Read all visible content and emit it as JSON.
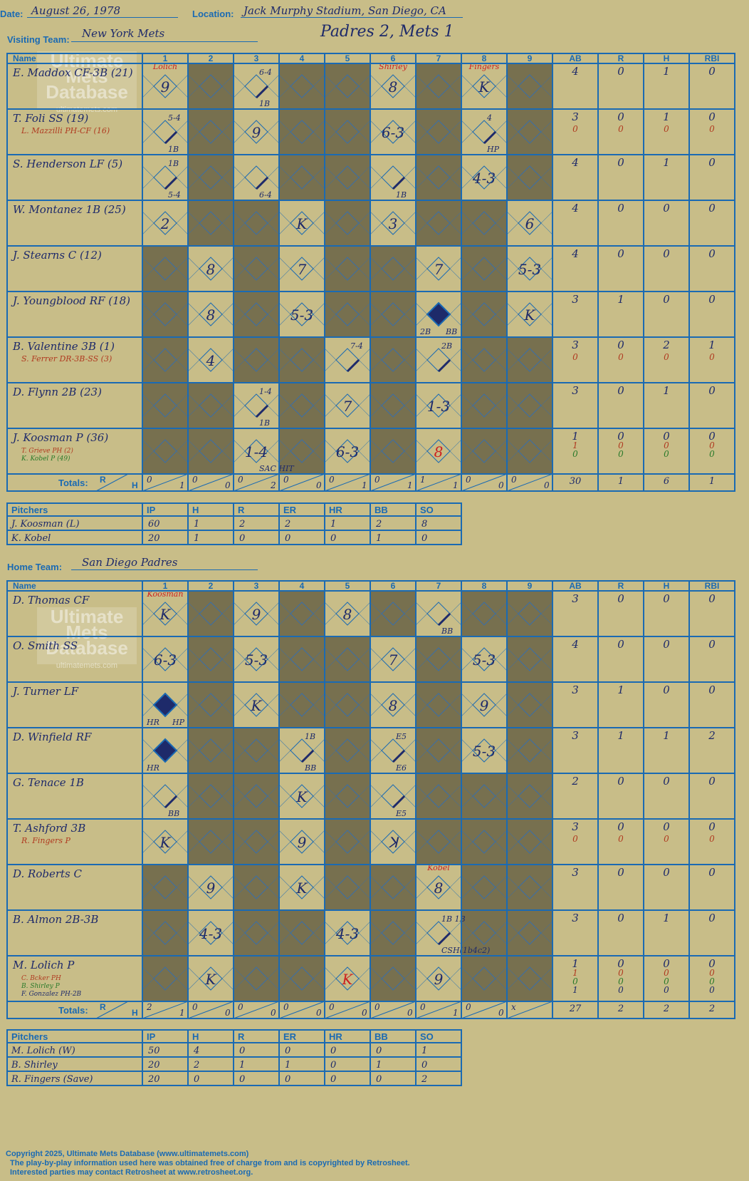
{
  "header": {
    "date_label": "Date:",
    "date": "August 26, 1978",
    "location_label": "Location:",
    "location": "Jack Murphy Stadium, San Diego, CA",
    "visiting_label": "Visiting Team:",
    "visiting_team": "New York Mets",
    "home_label": "Home Team:",
    "home_team": "San Diego Padres",
    "result": "Padres 2, Mets 1"
  },
  "watermark": [
    "Ultimate",
    "Mets",
    "Database",
    "ultimatemets.com"
  ],
  "grid_headers": [
    "Name",
    "1",
    "2",
    "3",
    "4",
    "5",
    "6",
    "7",
    "8",
    "9",
    "AB",
    "R",
    "H",
    "RBI"
  ],
  "totals_label": "Totals:",
  "totals_r": "R",
  "totals_h": "H",
  "pitch_headers": [
    "Pitchers",
    "IP",
    "H",
    "R",
    "ER",
    "HR",
    "BB",
    "SO"
  ],
  "visitors": {
    "batters": [
      {
        "name": "E. Maddox CF-3B (21)",
        "subs": [],
        "stats": [
          [
            "4",
            "0",
            "1",
            "0"
          ]
        ]
      },
      {
        "name": "T. Foli SS (19)",
        "subs": [
          {
            "name": "L. Mazzilli PH-CF (16)",
            "color": "#b03a20"
          }
        ],
        "stats": [
          [
            "3",
            "0",
            "1",
            "0"
          ],
          [
            "0",
            "0",
            "0",
            "0"
          ]
        ]
      },
      {
        "name": "S. Henderson LF (5)",
        "subs": [],
        "stats": [
          [
            "4",
            "0",
            "1",
            "0"
          ]
        ]
      },
      {
        "name": "W. Montanez 1B (25)",
        "subs": [],
        "stats": [
          [
            "4",
            "0",
            "0",
            "0"
          ]
        ]
      },
      {
        "name": "J. Stearns C (12)",
        "subs": [],
        "stats": [
          [
            "4",
            "0",
            "0",
            "0"
          ]
        ]
      },
      {
        "name": "J. Youngblood RF (18)",
        "subs": [],
        "stats": [
          [
            "3",
            "1",
            "0",
            "0"
          ]
        ]
      },
      {
        "name": "B. Valentine 3B (1)",
        "subs": [
          {
            "name": "S. Ferrer DR-3B-SS (3)",
            "color": "#b03a20"
          }
        ],
        "stats": [
          [
            "3",
            "0",
            "2",
            "1"
          ],
          [
            "0",
            "0",
            "0",
            "0"
          ]
        ]
      },
      {
        "name": "D. Flynn 2B (23)",
        "subs": [],
        "stats": [
          [
            "3",
            "0",
            "1",
            "0"
          ]
        ]
      },
      {
        "name": "J. Koosman P (36)",
        "subs": [
          {
            "name": "T. Grieve PH (2)",
            "color": "#b03a20"
          },
          {
            "name": "K. Kobel P (49)",
            "color": "#2a7a2a"
          }
        ],
        "stats": [
          [
            "1",
            "0",
            "0",
            "0"
          ],
          [
            "1",
            "0",
            "0",
            "0"
          ],
          [
            "0",
            "0",
            "0",
            "0"
          ]
        ]
      }
    ],
    "cells": [
      [
        {
          "t": "9"
        },
        {
          "sh": 1
        },
        {
          "t": "",
          "d": "6-4",
          "b": "1B"
        },
        {
          "sh": 1
        },
        {
          "sh": 1
        },
        {
          "t": "8",
          "top": "Shirley"
        },
        {
          "sh": 1
        },
        {
          "t": "K",
          "top": "Fingers"
        },
        {
          "sh": 1
        }
      ],
      [
        {
          "t": "",
          "d": "5-4",
          "b": "1B"
        },
        {
          "sh": 1
        },
        {
          "t": "9"
        },
        {
          "sh": 1
        },
        {
          "sh": 1
        },
        {
          "t": "6-3"
        },
        {
          "sh": 1
        },
        {
          "t": "",
          "d": "4",
          "b": "HP"
        },
        {
          "sh": 1
        }
      ],
      [
        {
          "t": "",
          "d": "1B",
          "b": "5-4"
        },
        {
          "sh": 1
        },
        {
          "t": "",
          "b": "6-4"
        },
        {
          "sh": 1
        },
        {
          "sh": 1
        },
        {
          "t": "",
          "b": "1B"
        },
        {
          "sh": 1
        },
        {
          "t": "4-3"
        },
        {
          "sh": 1
        }
      ],
      [
        {
          "t": "2"
        },
        {
          "sh": 1
        },
        {
          "sh": 1
        },
        {
          "t": "K"
        },
        {
          "sh": 1
        },
        {
          "t": "3"
        },
        {
          "sh": 1
        },
        {
          "sh": 1
        },
        {
          "t": "6"
        }
      ],
      [
        {
          "sh": 1
        },
        {
          "t": "8"
        },
        {
          "sh": 1
        },
        {
          "t": "7"
        },
        {
          "sh": 1
        },
        {
          "sh": 1
        },
        {
          "t": "7"
        },
        {
          "sh": 1
        },
        {
          "t": "5-3"
        }
      ],
      [
        {
          "sh": 1
        },
        {
          "t": "8"
        },
        {
          "sh": 1
        },
        {
          "t": "5-3"
        },
        {
          "sh": 1
        },
        {
          "sh": 1
        },
        {
          "t": "",
          "run": 1,
          "b": "2B",
          "b2": "BB"
        },
        {
          "sh": 1
        },
        {
          "t": "K"
        }
      ],
      [
        {
          "sh": 1
        },
        {
          "t": "4"
        },
        {
          "sh": 1
        },
        {
          "sh": 1
        },
        {
          "t": "",
          "d": "7-4"
        },
        {
          "sh": 1
        },
        {
          "t": "",
          "d": "2B"
        },
        {
          "sh": 1
        },
        {
          "sh": 1
        }
      ],
      [
        {
          "sh": 1
        },
        {
          "sh": 1
        },
        {
          "t": "",
          "d": "1-4",
          "b": "1B"
        },
        {
          "sh": 1
        },
        {
          "t": "7"
        },
        {
          "sh": 1
        },
        {
          "t": "1-3"
        },
        {
          "sh": 1
        },
        {
          "sh": 1
        }
      ],
      [
        {
          "sh": 1
        },
        {
          "sh": 1
        },
        {
          "t": "1-4",
          "b": "SAC HIT"
        },
        {
          "sh": 1
        },
        {
          "t": "6-3"
        },
        {
          "sh": 1
        },
        {
          "t": "8",
          "red": 1
        },
        {
          "sh": 1
        },
        {
          "sh": 1
        }
      ]
    ],
    "top_pitcher": "Lolich",
    "totals_rh": [
      [
        "0",
        "1"
      ],
      [
        "0",
        "0"
      ],
      [
        "0",
        "2"
      ],
      [
        "0",
        "0"
      ],
      [
        "0",
        "1"
      ],
      [
        "0",
        "1"
      ],
      [
        "1",
        "1"
      ],
      [
        "0",
        "0"
      ],
      [
        "0",
        "0"
      ]
    ],
    "totals_stats": [
      "30",
      "1",
      "6",
      "1"
    ],
    "pitchers": [
      {
        "name": "J. Koosman (L)",
        "vals": [
          "60",
          "1",
          "2",
          "2",
          "1",
          "2",
          "8"
        ]
      },
      {
        "name": "K. Kobel",
        "vals": [
          "20",
          "1",
          "0",
          "0",
          "0",
          "1",
          "0"
        ]
      }
    ]
  },
  "home": {
    "batters": [
      {
        "name": "D. Thomas CF",
        "subs": [],
        "stats": [
          [
            "3",
            "0",
            "0",
            "0"
          ]
        ]
      },
      {
        "name": "O. Smith SS",
        "subs": [],
        "stats": [
          [
            "4",
            "0",
            "0",
            "0"
          ]
        ]
      },
      {
        "name": "J. Turner LF",
        "subs": [],
        "stats": [
          [
            "3",
            "1",
            "0",
            "0"
          ]
        ]
      },
      {
        "name": "D. Winfield RF",
        "subs": [],
        "stats": [
          [
            "3",
            "1",
            "1",
            "2"
          ]
        ]
      },
      {
        "name": "G. Tenace 1B",
        "subs": [],
        "stats": [
          [
            "2",
            "0",
            "0",
            "0"
          ]
        ]
      },
      {
        "name": "T. Ashford 3B",
        "subs": [
          {
            "name": "R. Fingers P",
            "color": "#b03a20"
          }
        ],
        "stats": [
          [
            "3",
            "0",
            "0",
            "0"
          ],
          [
            "0",
            "0",
            "0",
            "0"
          ]
        ]
      },
      {
        "name": "D. Roberts C",
        "subs": [],
        "stats": [
          [
            "3",
            "0",
            "0",
            "0"
          ]
        ]
      },
      {
        "name": "B. Almon 2B-3B",
        "subs": [],
        "stats": [
          [
            "3",
            "0",
            "1",
            "0"
          ]
        ]
      },
      {
        "name": "M. Lolich P",
        "subs": [
          {
            "name": "C. Bcker PH",
            "color": "#b03a20"
          },
          {
            "name": "B. Shirley P",
            "color": "#2a7a2a"
          },
          {
            "name": "F. Gonzalez PH-2B",
            "color": "#1e2a6a"
          }
        ],
        "stats": [
          [
            "1",
            "0",
            "0",
            "0"
          ],
          [
            "1",
            "0",
            "0",
            "0"
          ],
          [
            "0",
            "0",
            "0",
            "0"
          ],
          [
            "1",
            "0",
            "0",
            "0"
          ]
        ]
      }
    ],
    "cells": [
      [
        {
          "t": "K"
        },
        {
          "sh": 1
        },
        {
          "t": "9"
        },
        {
          "sh": 1
        },
        {
          "t": "8"
        },
        {
          "sh": 1
        },
        {
          "t": "",
          "b": "BB"
        },
        {
          "sh": 1
        },
        {
          "sh": 1
        }
      ],
      [
        {
          "t": "6-3"
        },
        {
          "sh": 1
        },
        {
          "t": "5-3"
        },
        {
          "sh": 1
        },
        {
          "sh": 1
        },
        {
          "t": "7"
        },
        {
          "sh": 1
        },
        {
          "t": "5-3"
        },
        {
          "sh": 1
        }
      ],
      [
        {
          "t": "",
          "run": 1,
          "b": "HR",
          "b2": "HP"
        },
        {
          "sh": 1
        },
        {
          "t": "K"
        },
        {
          "sh": 1
        },
        {
          "sh": 1
        },
        {
          "t": "8"
        },
        {
          "sh": 1
        },
        {
          "t": "9"
        },
        {
          "sh": 1
        }
      ],
      [
        {
          "t": "",
          "run": 1,
          "b": "HR"
        },
        {
          "sh": 1
        },
        {
          "sh": 1
        },
        {
          "t": "",
          "d": "1B",
          "b": "BB"
        },
        {
          "sh": 1
        },
        {
          "t": "",
          "d": "E5",
          "b": "E6"
        },
        {
          "sh": 1
        },
        {
          "t": "5-3"
        },
        {
          "sh": 1
        }
      ],
      [
        {
          "t": "",
          "b": "BB"
        },
        {
          "sh": 1
        },
        {
          "sh": 1
        },
        {
          "t": "K"
        },
        {
          "sh": 1
        },
        {
          "t": "",
          "b": "E5"
        },
        {
          "sh": 1
        },
        {
          "sh": 1
        },
        {
          "sh": 1
        }
      ],
      [
        {
          "t": "K"
        },
        {
          "sh": 1
        },
        {
          "sh": 1
        },
        {
          "t": "9"
        },
        {
          "sh": 1
        },
        {
          "t": "ꓘ"
        },
        {
          "sh": 1
        },
        {
          "sh": 1
        },
        {
          "sh": 1
        }
      ],
      [
        {
          "sh": 1
        },
        {
          "t": "9"
        },
        {
          "sh": 1
        },
        {
          "t": "K"
        },
        {
          "sh": 1
        },
        {
          "sh": 1
        },
        {
          "t": "8",
          "top": "Kobel"
        },
        {
          "sh": 1
        },
        {
          "sh": 1
        }
      ],
      [
        {
          "sh": 1
        },
        {
          "t": "4-3"
        },
        {
          "sh": 1
        },
        {
          "sh": 1
        },
        {
          "t": "4-3"
        },
        {
          "sh": 1
        },
        {
          "t": "",
          "d": "1B  1B",
          "b": "CSH(1b4c2)"
        },
        {
          "sh": 1
        },
        {
          "sh": 1
        }
      ],
      [
        {
          "sh": 1
        },
        {
          "t": "K"
        },
        {
          "sh": 1
        },
        {
          "sh": 1
        },
        {
          "t": "K",
          "red": 1
        },
        {
          "sh": 1
        },
        {
          "t": "9"
        },
        {
          "sh": 1
        },
        {
          "sh": 1
        }
      ]
    ],
    "top_pitcher": "Koosman",
    "totals_rh": [
      [
        "2",
        "1"
      ],
      [
        "0",
        "0"
      ],
      [
        "0",
        "0"
      ],
      [
        "0",
        "0"
      ],
      [
        "0",
        "0"
      ],
      [
        "0",
        "0"
      ],
      [
        "0",
        "1"
      ],
      [
        "0",
        "0"
      ],
      [
        "x",
        ""
      ]
    ],
    "totals_stats": [
      "27",
      "2",
      "2",
      "2"
    ],
    "pitchers": [
      {
        "name": "M. Lolich (W)",
        "vals": [
          "50",
          "4",
          "0",
          "0",
          "0",
          "0",
          "1"
        ]
      },
      {
        "name": "B. Shirley",
        "vals": [
          "20",
          "2",
          "1",
          "1",
          "0",
          "1",
          "0"
        ]
      },
      {
        "name": "R. Fingers (Save)",
        "vals": [
          "20",
          "0",
          "0",
          "0",
          "0",
          "0",
          "2"
        ]
      }
    ]
  },
  "footer": [
    "Copyright 2025, Ultimate Mets Database (www.ultimatemets.com)",
    "The play-by-play information used here was obtained free of charge from and is copyrighted by Retrosheet.",
    "Interested parties may contact Retrosheet at www.retrosheet.org."
  ],
  "colors": {
    "bg": "#c8bd88",
    "shade": "#77704f",
    "line": "#1a6ab3",
    "ink": "#1e2a6a",
    "red": "#cc2020"
  }
}
